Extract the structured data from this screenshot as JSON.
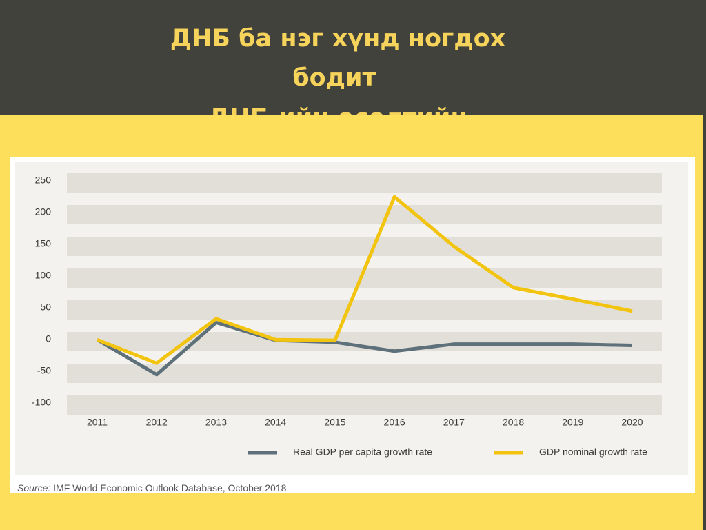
{
  "title_lines": [
    "ДНБ ба нэг хүнд ногдох",
    "бодит",
    "ДНБ-ийн өсөлтийн"
  ],
  "chart_data": {
    "type": "line",
    "categories": [
      "2011",
      "2012",
      "2013",
      "2014",
      "2015",
      "2016",
      "2017",
      "2018",
      "2019",
      "2020"
    ],
    "series": [
      {
        "name": "Real GDP per capita growth rate",
        "color": "#5e707a",
        "values": [
          3,
          -52,
          30,
          2,
          -1,
          -15,
          -4,
          -4,
          -4,
          -6
        ]
      },
      {
        "name": "GDP nominal growth rate",
        "color": "#f2c40f",
        "values": [
          3,
          -34,
          36,
          3,
          2,
          228,
          150,
          85,
          67,
          48
        ]
      }
    ],
    "ylim": [
      -100,
      250
    ],
    "yticks": [
      -100,
      -50,
      0,
      50,
      100,
      150,
      200,
      250
    ],
    "grid": "bands",
    "legend": "bottom"
  },
  "source": {
    "label": "Source:",
    "text": "IMF World Economic Outlook Database, October 2018"
  }
}
